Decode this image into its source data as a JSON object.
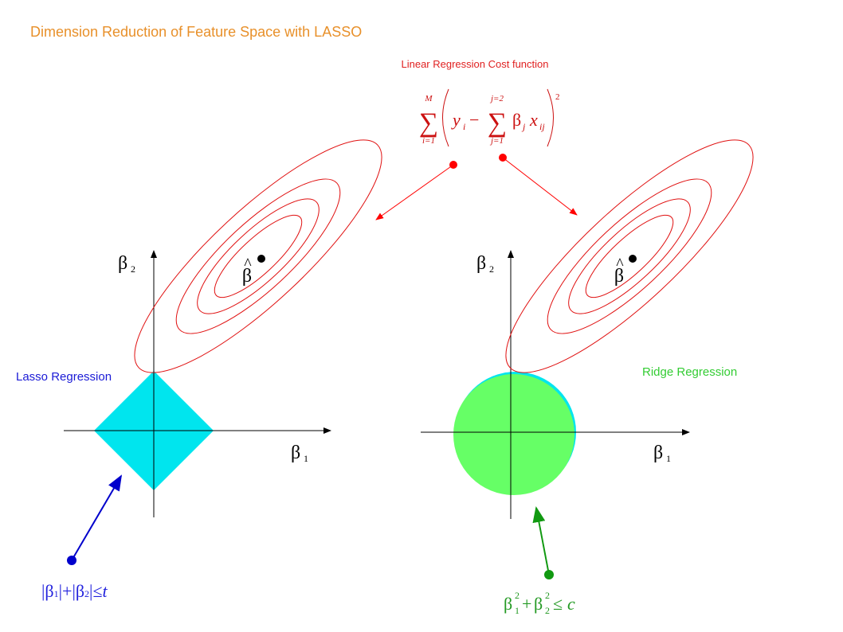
{
  "header": {
    "title": "Dimension Reduction of Feature Space with LASSO"
  },
  "cost_function": {
    "label": "Linear Regression Cost function",
    "sum_symbol": "∑",
    "outer_upper": "M",
    "outer_lower": "i=1",
    "y": "y",
    "y_sub": "i",
    "minus": "−",
    "inner_upper": "j=2",
    "inner_lower": "j=1",
    "beta": "β",
    "beta_sub": "j",
    "x": "x",
    "x_sub": "ij",
    "power": "2"
  },
  "lasso": {
    "label": "Lasso Regression",
    "axis_x": "β",
    "axis_x_sub": "1",
    "axis_y": "β",
    "axis_y_sub": "2",
    "estimate": "β",
    "hat": "^",
    "constraint": {
      "bar": "|",
      "beta": "β",
      "sub1": "1",
      "sub2": "2",
      "plus": "+",
      "leq": "≤",
      "bound": "t"
    }
  },
  "ridge": {
    "label": "Ridge Regression",
    "axis_x": "β",
    "axis_x_sub": "1",
    "axis_y": "β",
    "axis_y_sub": "2",
    "estimate": "β",
    "hat": "^",
    "constraint": {
      "beta": "β",
      "sub1": "1",
      "sub2": "2",
      "power": "2",
      "plus": "+",
      "leq": "≤",
      "bound": "c"
    }
  }
}
